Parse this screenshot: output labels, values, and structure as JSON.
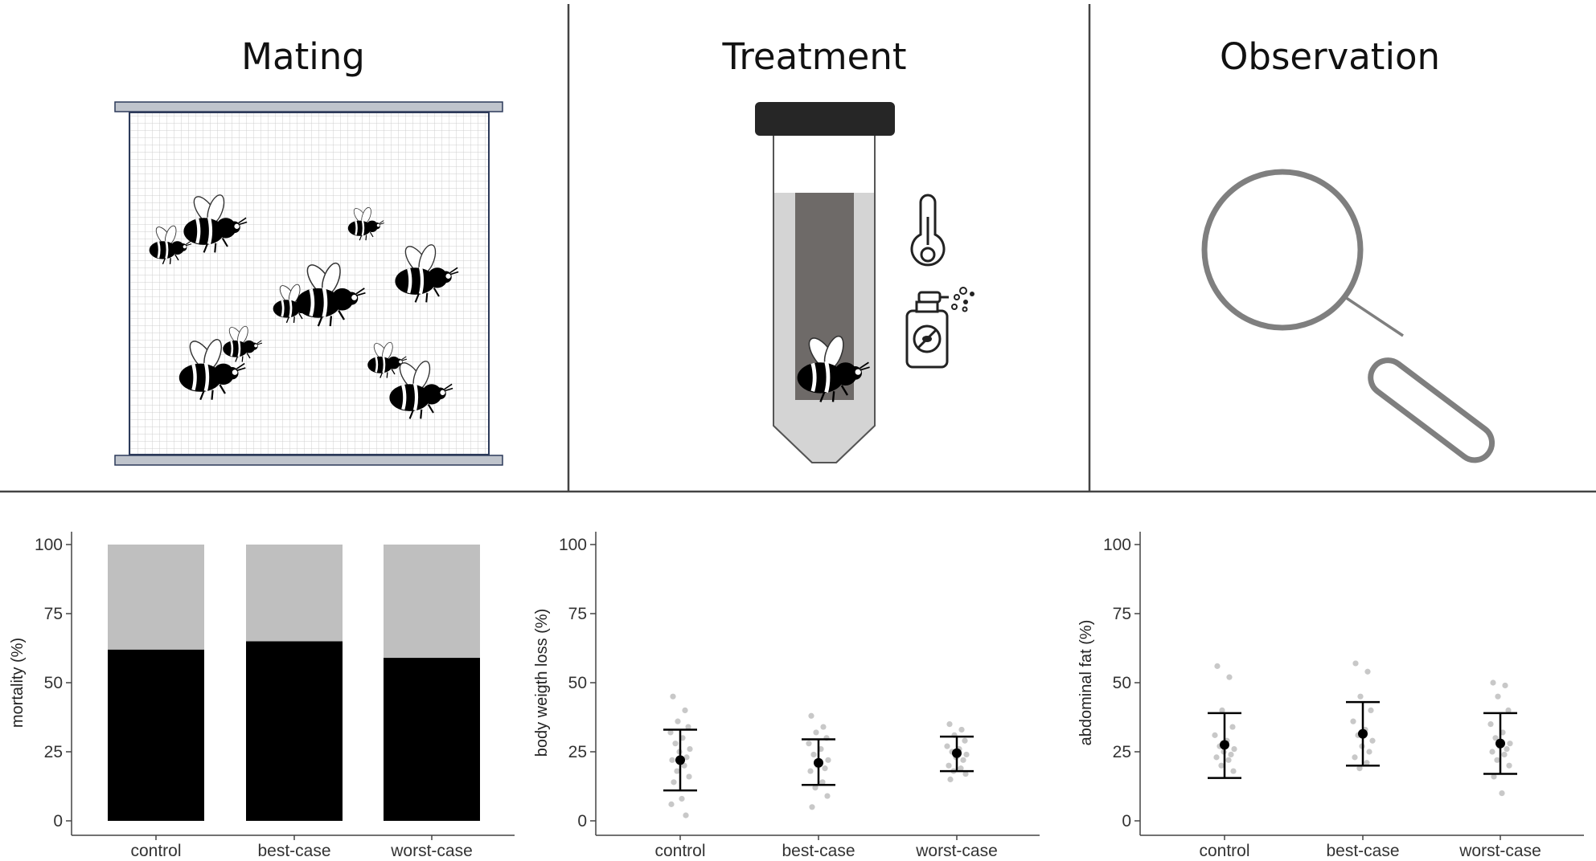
{
  "panels": {
    "mating": {
      "title": "Mating"
    },
    "treatment": {
      "title": "Treatment"
    },
    "observation": {
      "title": "Observation"
    }
  },
  "icons": {
    "mating": [
      "mesh-cage-icon",
      "bumblebee-icon"
    ],
    "treatment": [
      "test-tube-icon",
      "bumblebee-icon",
      "thermometer-icon",
      "spray-bottle-icon"
    ],
    "observation": [
      "magnifying-glass-icon"
    ]
  },
  "colors": {
    "bar_dead": "#000000",
    "bar_alive": "#bfbfbf",
    "raw_points": "#c8c8c8",
    "mean_point": "#000000",
    "divider": "#444444"
  },
  "chart_data": [
    {
      "type": "bar",
      "stacked": true,
      "categories": [
        "control",
        "best-case",
        "worst-case"
      ],
      "series": [
        {
          "values": [
            62,
            65,
            59
          ]
        },
        {
          "values": [
            38,
            35,
            41
          ]
        }
      ],
      "ylabel": "mortality (%)",
      "ylim": [
        0,
        100
      ],
      "yticks": [
        0,
        25,
        50,
        75,
        100
      ],
      "grid": false
    },
    {
      "type": "scatter",
      "categories": [
        "control",
        "best-case",
        "worst-case"
      ],
      "mean": [
        22,
        21,
        24.5
      ],
      "lower": [
        11,
        13,
        18
      ],
      "upper": [
        33,
        29.5,
        30.5
      ],
      "points": [
        [
          45,
          40,
          36,
          34,
          32,
          30,
          28,
          26,
          25,
          23,
          22,
          20,
          18,
          16,
          14,
          8,
          6,
          2
        ],
        [
          38,
          34,
          32,
          30,
          28,
          26,
          24,
          22,
          20,
          19,
          18,
          14,
          12,
          9,
          5
        ],
        [
          35,
          33,
          31,
          29,
          27,
          26,
          25,
          24,
          23,
          22,
          20,
          19,
          18,
          17,
          15
        ]
      ],
      "ylabel": "body weigth loss (%)",
      "ylim": [
        0,
        100
      ],
      "yticks": [
        0,
        25,
        50,
        75,
        100
      ],
      "grid": false
    },
    {
      "type": "scatter",
      "categories": [
        "control",
        "best-case",
        "worst-case"
      ],
      "mean": [
        27.5,
        31.5,
        28
      ],
      "lower": [
        15.5,
        20,
        17
      ],
      "upper": [
        39,
        43,
        39
      ],
      "points": [
        [
          56,
          52,
          40,
          34,
          31,
          29,
          27,
          26,
          25,
          24,
          23,
          22,
          20,
          18
        ],
        [
          57,
          54,
          45,
          40,
          36,
          33,
          31,
          29,
          27,
          25,
          23,
          21,
          19
        ],
        [
          50,
          49,
          45,
          40,
          35,
          32,
          30,
          28,
          27,
          26,
          25,
          24,
          22,
          20,
          16,
          10
        ]
      ],
      "ylabel": "abdominal fat (%)",
      "ylim": [
        0,
        100
      ],
      "yticks": [
        0,
        25,
        50,
        75,
        100
      ],
      "grid": false
    }
  ]
}
